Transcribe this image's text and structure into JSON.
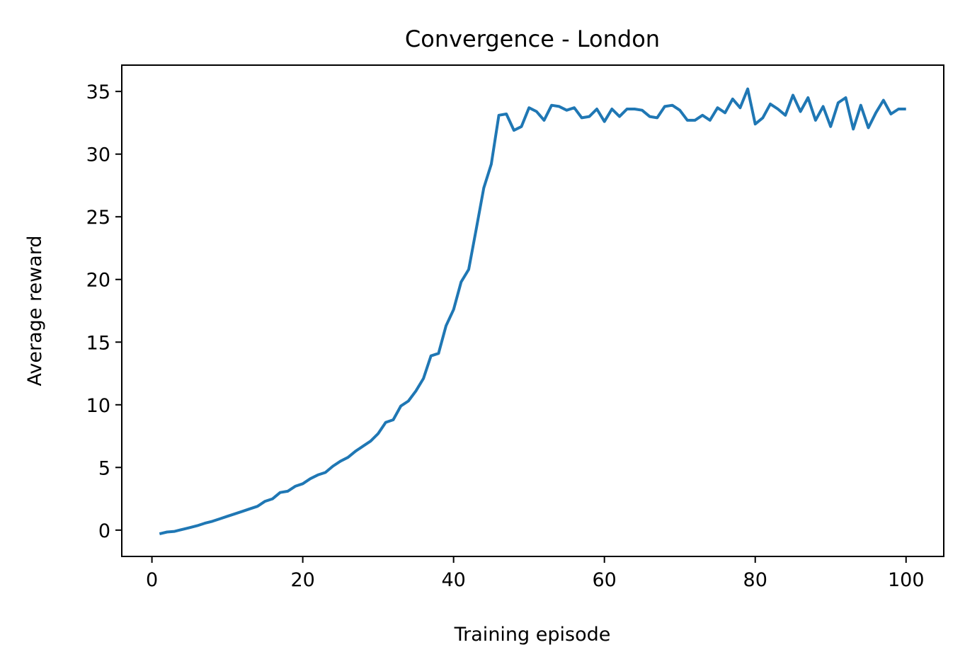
{
  "chart_data": {
    "type": "line",
    "title": "Convergence - London",
    "xlabel": "Training episode",
    "ylabel": "Average reward",
    "xlim": [
      -4,
      105
    ],
    "ylim": [
      -2.1,
      37.1
    ],
    "xticks": [
      0,
      20,
      40,
      60,
      80,
      100
    ],
    "yticks": [
      0,
      5,
      10,
      15,
      20,
      25,
      30,
      35
    ],
    "grid": false,
    "legend": "none",
    "series": [
      {
        "color": "#1f77b4",
        "x": [
          1,
          2,
          3,
          4,
          5,
          6,
          7,
          8,
          9,
          10,
          11,
          12,
          13,
          14,
          15,
          16,
          17,
          18,
          19,
          20,
          21,
          22,
          23,
          24,
          25,
          26,
          27,
          28,
          29,
          30,
          31,
          32,
          33,
          34,
          35,
          36,
          37,
          38,
          39,
          40,
          41,
          42,
          43,
          44,
          45,
          46,
          47,
          48,
          49,
          50,
          51,
          52,
          53,
          54,
          55,
          56,
          57,
          58,
          59,
          60,
          61,
          62,
          63,
          64,
          65,
          66,
          67,
          68,
          69,
          70,
          71,
          72,
          73,
          74,
          75,
          76,
          77,
          78,
          79,
          80,
          81,
          82,
          83,
          84,
          85,
          86,
          87,
          88,
          89,
          90,
          91,
          92,
          93,
          94,
          95,
          96,
          97,
          98,
          99,
          100
        ],
        "values": [
          -0.3,
          -0.15,
          -0.1,
          0.05,
          0.2,
          0.35,
          0.55,
          0.7,
          0.9,
          1.1,
          1.3,
          1.5,
          1.7,
          1.9,
          2.3,
          2.5,
          3.0,
          3.1,
          3.5,
          3.7,
          4.1,
          4.4,
          4.6,
          5.1,
          5.5,
          5.8,
          6.3,
          6.7,
          7.1,
          7.7,
          8.6,
          8.8,
          9.9,
          10.3,
          11.1,
          12.1,
          13.9,
          14.1,
          16.3,
          17.6,
          19.8,
          20.8,
          24.0,
          27.3,
          29.2,
          33.1,
          33.2,
          31.9,
          32.2,
          33.7,
          33.4,
          32.7,
          33.9,
          33.8,
          33.5,
          33.7,
          32.9,
          33.0,
          33.6,
          32.6,
          33.6,
          33.0,
          33.6,
          33.6,
          33.5,
          33.0,
          32.9,
          33.8,
          33.9,
          33.5,
          32.7,
          32.7,
          33.1,
          32.7,
          33.7,
          33.3,
          34.4,
          33.7,
          35.2,
          32.4,
          32.9,
          34.0,
          33.6,
          33.1,
          34.7,
          33.4,
          34.5,
          32.7,
          33.8,
          32.2,
          34.1,
          34.5,
          32.0,
          33.9,
          32.1,
          33.3,
          34.3,
          33.2,
          33.6,
          33.6
        ]
      }
    ]
  }
}
